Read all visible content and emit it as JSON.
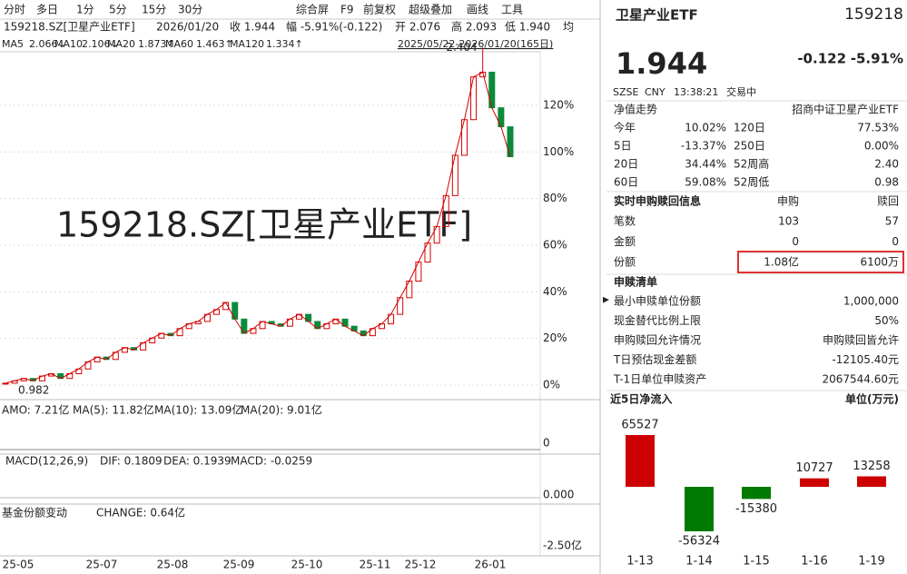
{
  "toolbar": {
    "periods": [
      "分时",
      "多日",
      "1分",
      "5分",
      "15分",
      "30分"
    ],
    "tools": [
      "综合屏",
      "F9",
      "前复权",
      "超级叠加",
      "画线",
      "工具"
    ]
  },
  "info": {
    "name": "159218.SZ[卫星产业ETF]",
    "date": "2026/01/20",
    "close": "收 1.944",
    "change": "幅 -5.91%(-0.122)",
    "open": "开 2.076",
    "high": "高 2.093",
    "low": "低 1.940",
    "avg": "均"
  },
  "ma": [
    {
      "label": "MA5",
      "value": "2.066↓",
      "color": "#d40000"
    },
    {
      "label": "MA10",
      "value": "2.106↓",
      "color": "#2244cc"
    },
    {
      "label": "MA20",
      "value": "1.873↑",
      "color": "#2244cc"
    },
    {
      "label": "MA60",
      "value": "1.463↑",
      "color": "#1aa0d8"
    },
    {
      "label": "MA120",
      "value": "1.334↑",
      "color": "#2a9a2a"
    }
  ],
  "range": "2025/05/22-2026/01/20(165日)",
  "kline": {
    "watermark": "159218.SZ[卫星产业ETF]",
    "high_label": 2.404,
    "low_label": 0.982,
    "yticks": [
      {
        "value": 0,
        "label": "0%"
      },
      {
        "value": 20,
        "label": "20%"
      },
      {
        "value": 40,
        "label": "40%"
      },
      {
        "value": 60,
        "label": "60%"
      },
      {
        "value": 80,
        "label": "80%"
      },
      {
        "value": 100,
        "label": "100%"
      },
      {
        "value": 120,
        "label": "120%"
      }
    ],
    "close": [
      0.99,
      1.0,
      1.01,
      1.0,
      1.02,
      1.03,
      1.01,
      1.03,
      1.05,
      1.08,
      1.1,
      1.09,
      1.12,
      1.14,
      1.13,
      1.16,
      1.18,
      1.2,
      1.19,
      1.22,
      1.24,
      1.25,
      1.28,
      1.3,
      1.33,
      1.26,
      1.2,
      1.22,
      1.25,
      1.24,
      1.23,
      1.26,
      1.28,
      1.25,
      1.22,
      1.24,
      1.26,
      1.23,
      1.21,
      1.19,
      1.22,
      1.24,
      1.28,
      1.35,
      1.42,
      1.5,
      1.58,
      1.65,
      1.78,
      1.95,
      2.1,
      2.28,
      2.3,
      2.15,
      2.07,
      1.944
    ],
    "color": "#d40000",
    "xlabels": [
      "25-05",
      "25-07",
      "25-08",
      "25-09",
      "25-10",
      "25-11",
      "25-12",
      "26-01"
    ]
  },
  "amo": {
    "items": [
      "AMO: 7.21亿",
      "MA(5): 11.82亿",
      "MA(10): 13.09亿",
      "MA(20): 9.01亿"
    ],
    "axis": "0"
  },
  "macd": {
    "items": [
      "MACD(12,26,9)",
      "DIF: 0.1809",
      "DEA: 0.1939",
      "MACD: -0.0259"
    ],
    "axis": "0.000"
  },
  "fund": {
    "items": [
      "基金份额变动",
      "CHANGE: 0.64亿"
    ],
    "axis": "-2.50亿"
  },
  "quote": {
    "name": "卫星产业ETF",
    "code": "159218",
    "price": "1.944",
    "change": "-0.122",
    "pct": "-5.91%",
    "status": [
      "SZSE",
      "CNY",
      "13:38:21",
      "交易中"
    ]
  },
  "nav": {
    "title": "净值走势",
    "index": "招商中证卫星产业ETF",
    "rows": [
      [
        "今年",
        "10.02%",
        "120日",
        "77.53%"
      ],
      [
        "5日",
        "-13.37%",
        "250日",
        "0.00%"
      ],
      [
        "20日",
        "34.44%",
        "52周高",
        "2.40"
      ],
      [
        "60日",
        "59.08%",
        "52周低",
        "0.98"
      ]
    ]
  },
  "realtime": {
    "title": "实时申购赎回信息",
    "headers": [
      "申购",
      "赎回"
    ],
    "rows": [
      [
        "笔数",
        "103",
        "57"
      ],
      [
        "金额",
        "0",
        "0"
      ],
      [
        "份额",
        "1.08亿",
        "6100万"
      ]
    ]
  },
  "list": {
    "title": "申赎清单",
    "rows": [
      [
        "最小申赎单位份额",
        "1,000,000"
      ],
      [
        "现金替代比例上限",
        "50%"
      ],
      [
        "申购赎回允许情况",
        "申购赎回皆允许"
      ],
      [
        "T日预估现金差额",
        "-12105.40元"
      ],
      [
        "T-1日单位申赎资产",
        "2067544.60元"
      ]
    ]
  },
  "chart_data": {
    "type": "bar",
    "title": "近5日净流入",
    "unit": "单位(万元)",
    "categories": [
      "1-13",
      "1-14",
      "1-15",
      "1-16",
      "1-19"
    ],
    "values": [
      65527,
      -56324,
      -15380,
      10727,
      13258
    ],
    "colors": {
      "positive": "#cc0000",
      "negative": "#007a00"
    }
  }
}
